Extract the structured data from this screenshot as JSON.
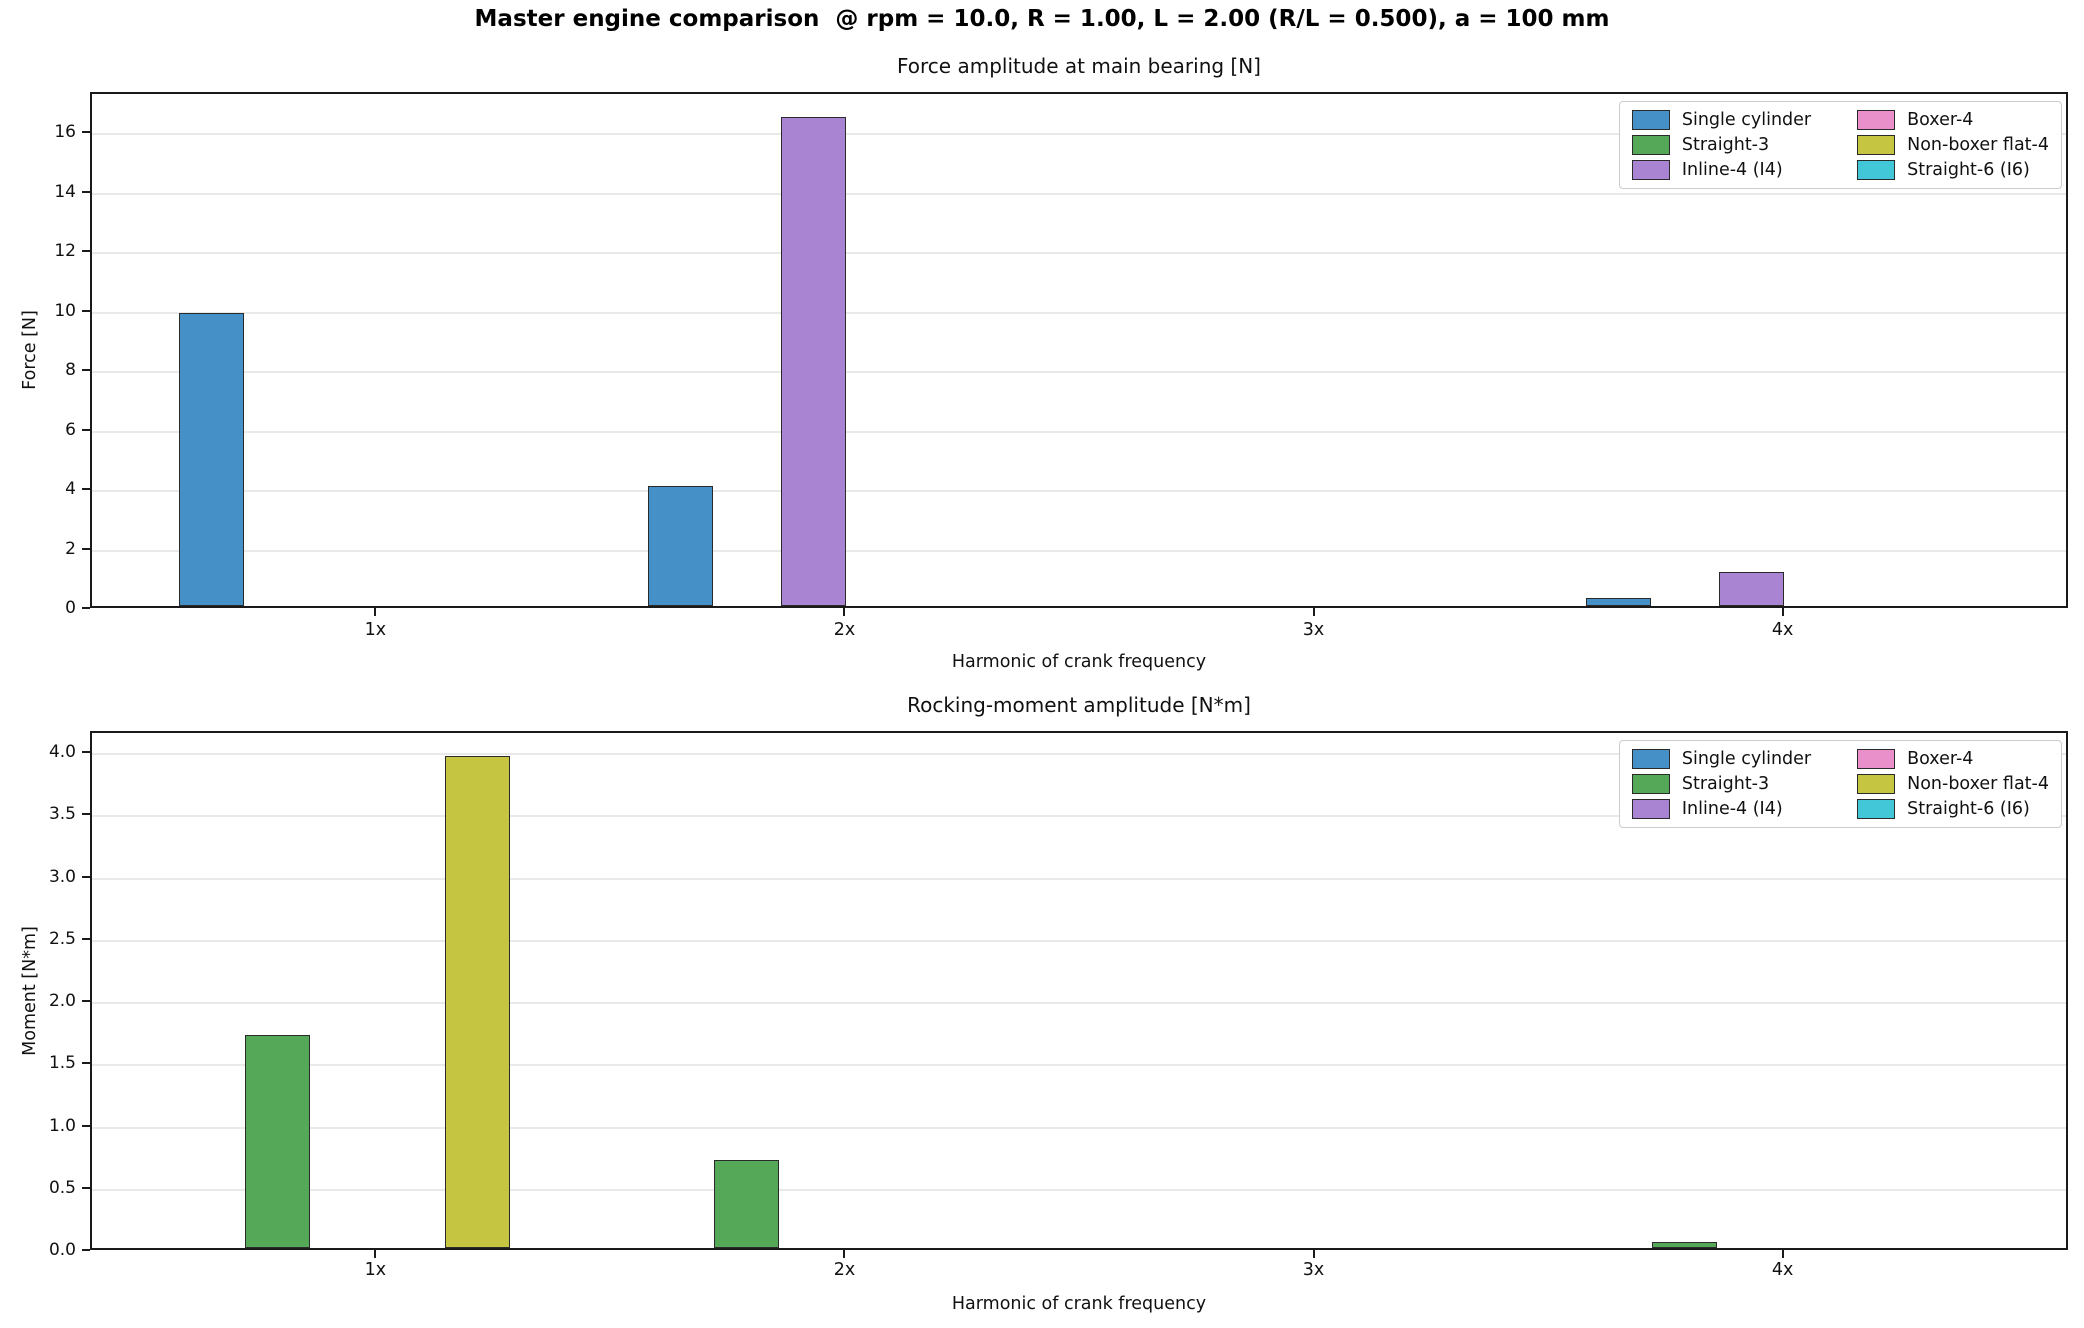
{
  "suptitle": "Master engine comparison  @ rpm = 10.0, R = 1.00, L = 2.00 (R/L = 0.500), a = 100 mm",
  "style": {
    "bar_edge_color": "#2a2a2a",
    "grid_color": "#e9e9e9",
    "spine_color": "#1a1a1a",
    "text_color": "#111111",
    "legend_border_color": "#cccccc"
  },
  "chart_data": [
    {
      "type": "bar",
      "title": "Force amplitude at main bearing [N]",
      "xlabel": "Harmonic of crank frequency",
      "ylabel": "Force [N]",
      "categories": [
        "1x",
        "2x",
        "3x",
        "4x"
      ],
      "series": [
        {
          "name": "Single cylinder",
          "color": "#4590c6",
          "values": [
            9.85,
            4.05,
            0,
            0.27
          ]
        },
        {
          "name": "Straight-3",
          "color": "#54a858",
          "values": [
            0,
            0,
            0,
            0
          ]
        },
        {
          "name": "Inline-4 (I4)",
          "color": "#a884d2",
          "values": [
            0,
            16.43,
            0,
            1.15
          ]
        },
        {
          "name": "Boxer-4",
          "color": "#e98fc9",
          "values": [
            0,
            0,
            0,
            0
          ]
        },
        {
          "name": "Non-boxer flat-4",
          "color": "#c6c542",
          "values": [
            0,
            0,
            0,
            0
          ]
        },
        {
          "name": "Straight-6 (I6)",
          "color": "#41c7d7",
          "values": [
            0,
            0,
            0,
            0
          ]
        }
      ],
      "ylim": [
        0,
        17.35
      ],
      "ytick_labels": [
        "0",
        "2",
        "4",
        "6",
        "8",
        "10",
        "12",
        "14",
        "16"
      ],
      "grid": "horizontal",
      "legend_position": "upper right"
    },
    {
      "type": "bar",
      "title": "Rocking-moment amplitude [N*m]",
      "xlabel": "Harmonic of crank frequency",
      "ylabel": "Moment [N*m]",
      "categories": [
        "1x",
        "2x",
        "3x",
        "4x"
      ],
      "series": [
        {
          "name": "Single cylinder",
          "color": "#4590c6",
          "values": [
            0,
            0,
            0,
            0
          ]
        },
        {
          "name": "Straight-3",
          "color": "#54a858",
          "values": [
            1.71,
            0.71,
            0,
            0.05
          ]
        },
        {
          "name": "Inline-4 (I4)",
          "color": "#a884d2",
          "values": [
            0,
            0,
            0,
            0
          ]
        },
        {
          "name": "Boxer-4",
          "color": "#e98fc9",
          "values": [
            0,
            0,
            0,
            0
          ]
        },
        {
          "name": "Non-boxer flat-4",
          "color": "#c6c542",
          "values": [
            3.95,
            0,
            0,
            0
          ]
        },
        {
          "name": "Straight-6 (I6)",
          "color": "#41c7d7",
          "values": [
            0,
            0,
            0,
            0
          ]
        }
      ],
      "ylim": [
        0,
        4.17
      ],
      "ytick_labels": [
        "0.0",
        "0.5",
        "1.0",
        "1.5",
        "2.0",
        "2.5",
        "3.0",
        "3.5",
        "4.0"
      ],
      "grid": "horizontal",
      "legend_position": "upper right"
    }
  ]
}
